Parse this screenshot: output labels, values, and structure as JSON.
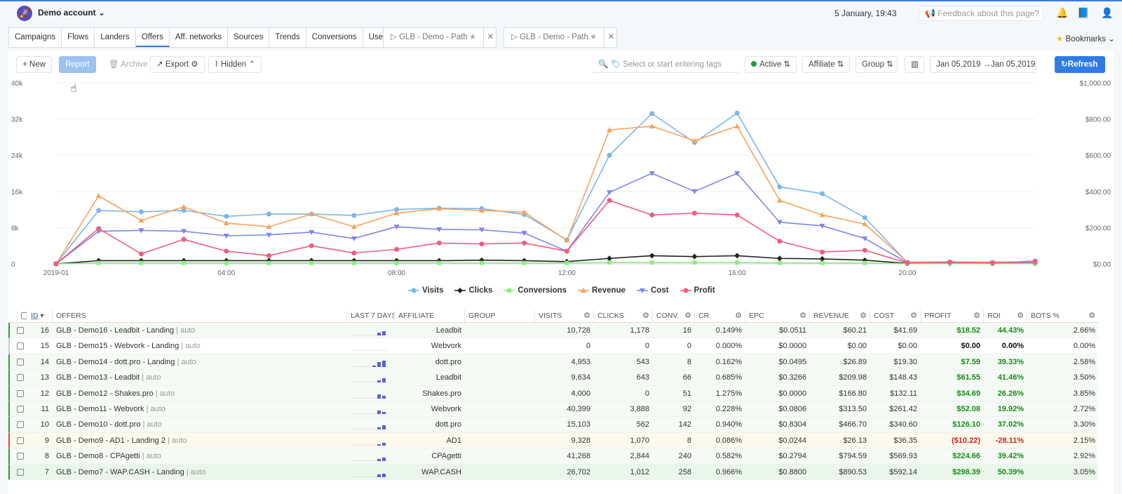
{
  "header": {
    "account": "Demo account",
    "datetime": "5 January, 19:43",
    "feedback_placeholder": "Feedback about this page?"
  },
  "tabs": [
    "Campaigns",
    "Flows",
    "Landers",
    "Offers",
    "Aff. networks",
    "Sources",
    "Trends",
    "Conversions",
    "Users"
  ],
  "pinned_tabs": [
    "GLB - Demo - Path",
    "GLB - Demo - Path"
  ],
  "bookmarks_label": "Bookmarks",
  "toolbar": {
    "new": "+ New",
    "report": "Report",
    "archive": "Archive",
    "export": "Export",
    "hidden": "Hidden",
    "tags_placeholder": "Select or start entering tags",
    "status": "Active",
    "affiliate": "Affiliate",
    "group": "Group",
    "date_from": "Jan 05,2019",
    "date_to": "Jan 05,2019",
    "refresh": "Refresh"
  },
  "chart_data": {
    "type": "line",
    "x": [
      "2019-01",
      "01:00",
      "02:00",
      "03:00",
      "04:00",
      "05:00",
      "06:00",
      "07:00",
      "08:00",
      "09:00",
      "10:00",
      "11:00",
      "12:00",
      "13:00",
      "14:00",
      "15:00",
      "16:00",
      "17:00",
      "18:00",
      "19:00",
      "20:00",
      "21:00",
      "22:00",
      "23:00"
    ],
    "xticks": [
      "2019-01",
      "04:00",
      "08:00",
      "12:00",
      "16:00",
      "20:00"
    ],
    "yleft_ticks": [
      "0",
      "8k",
      "16k",
      "24k",
      "32k",
      "40k"
    ],
    "yright_ticks": [
      "$0.00",
      "$200.00",
      "$400.00",
      "$600.00",
      "$800.00",
      "$1,000.00"
    ],
    "ylim_left": [
      0,
      40000
    ],
    "ylim_right": [
      0,
      1000
    ],
    "legend_position": "bottom",
    "series": [
      {
        "name": "Visits",
        "axis": "left",
        "color": "#7cb5ec",
        "marker": "circle",
        "values": [
          0,
          11800,
          11500,
          11800,
          10500,
          11000,
          11000,
          10700,
          12000,
          12300,
          12200,
          10900,
          5300,
          24000,
          33200,
          26800,
          33300,
          17000,
          15500,
          10200,
          300,
          300,
          200,
          300
        ]
      },
      {
        "name": "Clicks",
        "axis": "left",
        "color": "#222222",
        "marker": "diamond",
        "values": [
          0,
          700,
          700,
          700,
          700,
          700,
          700,
          700,
          700,
          700,
          800,
          700,
          500,
          1200,
          1800,
          1600,
          1800,
          1200,
          1100,
          800,
          100,
          100,
          100,
          100
        ]
      },
      {
        "name": "Conversions",
        "axis": "left",
        "color": "#90ed7d",
        "marker": "square",
        "values": [
          0,
          200,
          200,
          200,
          200,
          200,
          200,
          200,
          200,
          200,
          200,
          200,
          200,
          300,
          300,
          300,
          300,
          200,
          200,
          200,
          50,
          50,
          50,
          50
        ]
      },
      {
        "name": "Revenue",
        "axis": "right",
        "color": "#f7a35c",
        "marker": "triangle",
        "values": [
          0,
          375,
          240,
          315,
          225,
          205,
          275,
          205,
          280,
          305,
          295,
          285,
          130,
          740,
          760,
          680,
          760,
          350,
          270,
          220,
          10,
          10,
          10,
          10
        ]
      },
      {
        "name": "Cost",
        "axis": "right",
        "color": "#8085e9",
        "marker": "triangle-down",
        "values": [
          0,
          180,
          185,
          180,
          155,
          160,
          175,
          140,
          205,
          190,
          188,
          170,
          70,
          395,
          500,
          400,
          500,
          230,
          210,
          140,
          6,
          6,
          6,
          6
        ]
      },
      {
        "name": "Profit",
        "axis": "right",
        "color": "#f15c80",
        "marker": "circle",
        "values": [
          0,
          195,
          55,
          135,
          70,
          45,
          100,
          60,
          80,
          115,
          110,
          115,
          70,
          350,
          270,
          280,
          270,
          125,
          65,
          75,
          5,
          10,
          5,
          15
        ]
      }
    ]
  },
  "table": {
    "columns": [
      "ID",
      "OFFERS",
      "LAST 7 DAYS",
      "AFFILIATE",
      "GROUP",
      "VISITS",
      "CLICKS",
      "CONV.",
      "CR",
      "EPC",
      "REVENUE",
      "COST",
      "PROFIT",
      "ROI",
      "BOTS %"
    ],
    "rows": [
      {
        "id": "16",
        "name": "GLB - Demo16 - Leadbit - Landing",
        "tag": "| auto",
        "affiliate": "Leadbit",
        "visits": "10,728",
        "clicks": "1,178",
        "conv": "16",
        "cr": "0.149%",
        "epc": "$0.0511",
        "revenue": "$60.21",
        "cost": "$41.69",
        "profit": "$18.52",
        "roi": "44.43%",
        "bots": "2.66%",
        "sign": "pos",
        "status_color": "#2a9c3d",
        "bg": "#f4faf4",
        "spark": [
          0,
          0,
          0,
          0,
          0,
          0.4,
          0.6
        ]
      },
      {
        "id": "15",
        "name": "GLB - Demo15 - Webvork - Landing",
        "tag": "| auto",
        "affiliate": "Webvork",
        "visits": "0",
        "clicks": "0",
        "conv": "0",
        "cr": "0.000%",
        "epc": "$0.0000",
        "revenue": "$0.00",
        "cost": "$0.00",
        "profit": "$0.00",
        "roi": "0.00%",
        "bots": "0.00%",
        "sign": "zero",
        "status_color": "#cccccc",
        "bg": "#ffffff",
        "spark": [
          0,
          0,
          0,
          0,
          0,
          0,
          0
        ]
      },
      {
        "id": "14",
        "name": "GLB - Demo14 - dott.pro - Landing",
        "tag": "| auto",
        "affiliate": "dott.pro",
        "visits": "4,953",
        "clicks": "543",
        "conv": "8",
        "cr": "0.162%",
        "epc": "$0.0495",
        "revenue": "$26.89",
        "cost": "$19.30",
        "profit": "$7.59",
        "roi": "39.33%",
        "bots": "2.58%",
        "sign": "pos",
        "status_color": "#2a9c3d",
        "bg": "#f4faf4",
        "spark": [
          0,
          0,
          0,
          0,
          0.2,
          0.7,
          0.9
        ]
      },
      {
        "id": "13",
        "name": "GLB - Demo13 - Leadbit",
        "tag": "| auto",
        "affiliate": "Leadbit",
        "visits": "9,634",
        "clicks": "643",
        "conv": "66",
        "cr": "0.685%",
        "epc": "$0.3266",
        "revenue": "$209.98",
        "cost": "$148.43",
        "profit": "$61.55",
        "roi": "41.46%",
        "bots": "3.50%",
        "sign": "pos",
        "status_color": "#2a9c3d",
        "bg": "#f4faf4",
        "spark": [
          0,
          0,
          0,
          0,
          0,
          0.3,
          0.6
        ]
      },
      {
        "id": "12",
        "name": "GLB - Demo12 - Shakes.pro",
        "tag": "| auto",
        "affiliate": "Shakes.pro",
        "visits": "4,000",
        "clicks": "0",
        "conv": "51",
        "cr": "1.275%",
        "epc": "$0.0000",
        "revenue": "$166.80",
        "cost": "$132.11",
        "profit": "$34.69",
        "roi": "26.26%",
        "bots": "3.85%",
        "sign": "pos",
        "status_color": "#2a9c3d",
        "bg": "#f4faf4",
        "spark": [
          0,
          0,
          0,
          0,
          0,
          0.6,
          0.4
        ]
      },
      {
        "id": "11",
        "name": "GLB - Demo11 - Webvork",
        "tag": "| auto",
        "affiliate": "Webvork",
        "visits": "40,399",
        "clicks": "3,888",
        "conv": "92",
        "cr": "0.228%",
        "epc": "$0.0806",
        "revenue": "$313.50",
        "cost": "$261.42",
        "profit": "$52.08",
        "roi": "19.92%",
        "bots": "2.72%",
        "sign": "pos",
        "status_color": "#2a9c3d",
        "bg": "#f4faf4",
        "spark": [
          0,
          0,
          0,
          0,
          0,
          0.5,
          0.3
        ]
      },
      {
        "id": "10",
        "name": "GLB - Demo10 - dott.pro",
        "tag": "| auto",
        "affiliate": "dott.pro",
        "visits": "15,103",
        "clicks": "562",
        "conv": "142",
        "cr": "0.940%",
        "epc": "$0.8304",
        "revenue": "$466.70",
        "cost": "$340.60",
        "profit": "$126.10",
        "roi": "37.02%",
        "bots": "3.30%",
        "sign": "pos",
        "status_color": "#2a9c3d",
        "bg": "#f4faf4",
        "spark": [
          0,
          0,
          0,
          0,
          0,
          0.3,
          0.6
        ]
      },
      {
        "id": "9",
        "name": "GLB - Demo9 - AD1 - Landing 2",
        "tag": "| auto",
        "affiliate": "AD1",
        "visits": "9,328",
        "clicks": "1,070",
        "conv": "8",
        "cr": "0.086%",
        "epc": "$0.0244",
        "revenue": "$26.13",
        "cost": "$36.35",
        "profit": "($10.22)",
        "roi": "-28.11%",
        "bots": "2.15%",
        "sign": "neg",
        "status_color": "#e0453a",
        "bg": "#fdf9ec",
        "spark": [
          0,
          0,
          0,
          0,
          0,
          0.2,
          0.4
        ]
      },
      {
        "id": "8",
        "name": "GLB - Demo8 - CPAgetti",
        "tag": "| auto",
        "affiliate": "CPAgetti",
        "visits": "41,268",
        "clicks": "2,844",
        "conv": "240",
        "cr": "0.582%",
        "epc": "$0.2794",
        "revenue": "$794.59",
        "cost": "$569.93",
        "profit": "$224.66",
        "roi": "39.42%",
        "bots": "2.92%",
        "sign": "pos",
        "status_color": "#2a9c3d",
        "bg": "#f4faf4",
        "spark": [
          0,
          0,
          0,
          0,
          0,
          0.3,
          0.5
        ]
      },
      {
        "id": "7",
        "name": "GLB - Demo7 - WAP.CASH - Landing",
        "tag": "| auto",
        "affiliate": "WAP.CASH",
        "visits": "26,702",
        "clicks": "1,012",
        "conv": "258",
        "cr": "0.966%",
        "epc": "$0.8800",
        "revenue": "$890.53",
        "cost": "$592.14",
        "profit": "$298.39",
        "roi": "50.39%",
        "bots": "3.05%",
        "sign": "pos",
        "status_color": "#2a9c3d",
        "bg": "#e8f7e8",
        "spark": [
          0,
          0,
          0,
          0,
          0,
          0.4,
          0.5
        ]
      }
    ]
  }
}
